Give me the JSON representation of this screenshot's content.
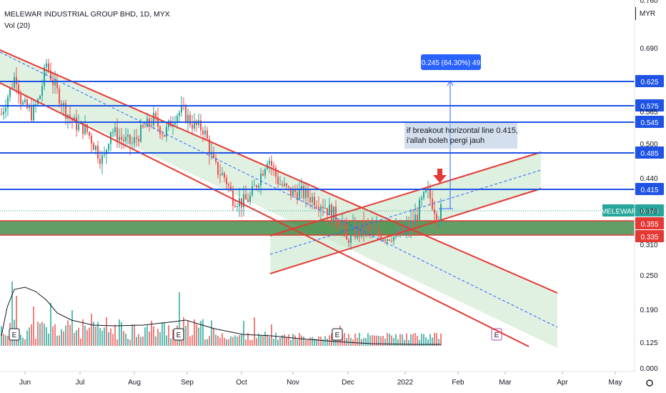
{
  "legend": {
    "symbol_line": "MELEWAR INDUSTRIAL GROUP BHD, 1D, MYX",
    "volume_line": "Vol (20)"
  },
  "currency_label": "MYR",
  "colors": {
    "up": "#26a69a",
    "down": "#ef5350",
    "channel_line": "#e53935",
    "channel_fill": "#c8e6c9",
    "level_line": "#1e53e5",
    "support_zone": "#2e7d32",
    "arrow": "#e53935",
    "measure": "#2962ff"
  },
  "chart_data": {
    "type": "candlestick",
    "title": "MELEWAR INDUSTRIAL GROUP BHD, 1D, MYX",
    "price_axis": {
      "ticks": [
        "0.690",
        "0.565",
        "0.500",
        "0.440",
        "0.375",
        "0.310",
        "0.250",
        "0.190",
        "0.125",
        "0.000"
      ],
      "top_partial_label": "0.760"
    },
    "time_axis": {
      "ticks": [
        "Jun",
        "Jul",
        "Aug",
        "Sep",
        "Oct",
        "Nov",
        "Dec",
        "2022",
        "Feb",
        "Mar",
        "Apr",
        "May"
      ]
    },
    "horizontal_levels": [
      "0.625",
      "0.575",
      "0.545",
      "0.485",
      "0.415"
    ],
    "support_zone": {
      "top": "0.355",
      "bottom": "0.335"
    },
    "last_price": {
      "symbol": "MELEWAR",
      "value": "0.375"
    },
    "measure_label": "0.245 (64.30%) 49",
    "annotation_lines": [
      "if breakout horizontal line 0.415,",
      "i'allah boleh pergi jauh"
    ],
    "earnings_markers": [
      "E",
      "E",
      "E",
      "E"
    ],
    "volume_series_name": "Vol (20)"
  }
}
